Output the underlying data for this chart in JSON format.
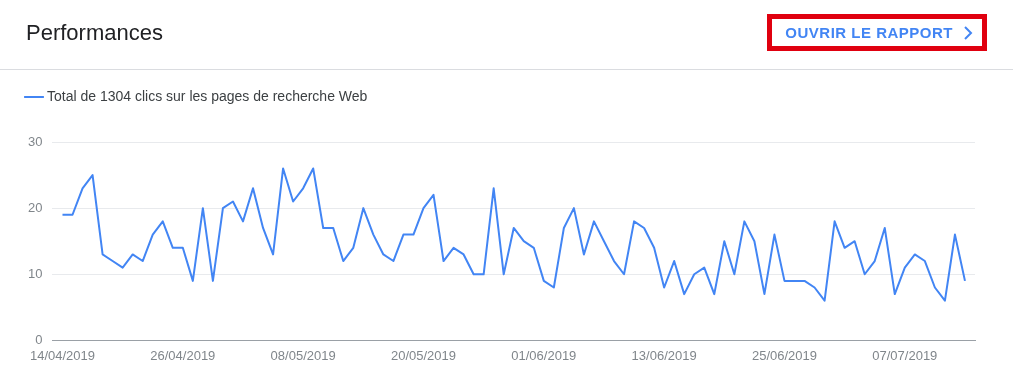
{
  "chart_data": {
    "type": "line",
    "title": "Performances",
    "annotations": [
      "OUVRIR LE RAPPORT"
    ],
    "x": [
      "2019-04-14",
      "2019-04-15",
      "2019-04-16",
      "2019-04-17",
      "2019-04-18",
      "2019-04-19",
      "2019-04-20",
      "2019-04-21",
      "2019-04-22",
      "2019-04-23",
      "2019-04-24",
      "2019-04-25",
      "2019-04-26",
      "2019-04-27",
      "2019-04-28",
      "2019-04-29",
      "2019-04-30",
      "2019-05-01",
      "2019-05-02",
      "2019-05-03",
      "2019-05-04",
      "2019-05-05",
      "2019-05-06",
      "2019-05-07",
      "2019-05-08",
      "2019-05-09",
      "2019-05-10",
      "2019-05-11",
      "2019-05-12",
      "2019-05-13",
      "2019-05-14",
      "2019-05-15",
      "2019-05-16",
      "2019-05-17",
      "2019-05-18",
      "2019-05-19",
      "2019-05-20",
      "2019-05-21",
      "2019-05-22",
      "2019-05-23",
      "2019-05-24",
      "2019-05-25",
      "2019-05-26",
      "2019-05-27",
      "2019-05-28",
      "2019-05-29",
      "2019-05-30",
      "2019-05-31",
      "2019-06-01",
      "2019-06-02",
      "2019-06-03",
      "2019-06-04",
      "2019-06-05",
      "2019-06-06",
      "2019-06-07",
      "2019-06-08",
      "2019-06-09",
      "2019-06-10",
      "2019-06-11",
      "2019-06-12",
      "2019-06-13",
      "2019-06-14",
      "2019-06-15",
      "2019-06-16",
      "2019-06-17",
      "2019-06-18",
      "2019-06-19",
      "2019-06-20",
      "2019-06-21",
      "2019-06-22",
      "2019-06-23",
      "2019-06-24",
      "2019-06-25",
      "2019-06-26",
      "2019-06-27",
      "2019-06-28",
      "2019-06-29",
      "2019-06-30",
      "2019-07-01",
      "2019-07-02",
      "2019-07-03",
      "2019-07-04",
      "2019-07-05",
      "2019-07-06",
      "2019-07-07",
      "2019-07-08",
      "2019-07-09",
      "2019-07-10",
      "2019-07-11",
      "2019-07-12",
      "2019-07-13"
    ],
    "series": [
      {
        "name": "Total de 1304 clics sur les pages de recherche Web",
        "color": "#4285f4",
        "values": [
          19,
          19,
          23,
          25,
          13,
          12,
          11,
          13,
          12,
          16,
          18,
          14,
          14,
          9,
          20,
          9,
          20,
          21,
          18,
          23,
          17,
          13,
          26,
          21,
          23,
          26,
          17,
          17,
          12,
          14,
          20,
          16,
          13,
          12,
          16,
          16,
          20,
          22,
          12,
          14,
          13,
          10,
          10,
          23,
          10,
          17,
          15,
          14,
          9,
          8,
          17,
          20,
          13,
          18,
          15,
          12,
          10,
          18,
          17,
          14,
          8,
          12,
          7,
          10,
          11,
          7,
          15,
          10,
          18,
          15,
          7,
          16,
          9,
          9,
          9,
          8,
          6,
          18,
          14,
          15,
          10,
          12,
          17,
          7,
          11,
          13,
          12,
          8,
          6,
          16,
          9
        ]
      }
    ],
    "xlim": [
      "2019-04-13",
      "2019-07-14"
    ],
    "xticks": [
      {
        "value": "2019-04-14",
        "label": "14/04/2019"
      },
      {
        "value": "2019-04-26",
        "label": "26/04/2019"
      },
      {
        "value": "2019-05-08",
        "label": "08/05/2019"
      },
      {
        "value": "2019-05-20",
        "label": "20/05/2019"
      },
      {
        "value": "2019-06-01",
        "label": "01/06/2019"
      },
      {
        "value": "2019-06-13",
        "label": "13/06/2019"
      },
      {
        "value": "2019-06-25",
        "label": "25/06/2019"
      },
      {
        "value": "2019-07-07",
        "label": "07/07/2019"
      }
    ],
    "ylim": [
      0,
      30
    ],
    "yticks": [
      0,
      10,
      20,
      30
    ],
    "grid": "y",
    "legend": "top left",
    "marker": "none",
    "line_style": "solid"
  }
}
